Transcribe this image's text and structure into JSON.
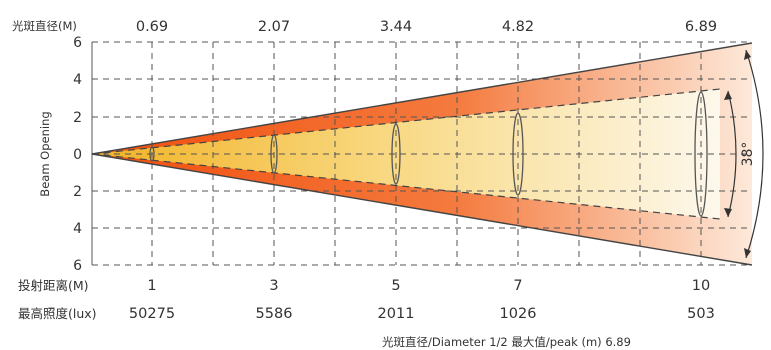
{
  "header": {
    "diameter_label": "光斑直径(M)",
    "diameters": [
      "0.69",
      "2.07",
      "3.44",
      "4.82",
      "6.89"
    ]
  },
  "axis": {
    "y_label": "Beam Opening",
    "y_ticks": [
      "6",
      "4",
      "2",
      "0",
      "2",
      "4",
      "6"
    ]
  },
  "beam": {
    "angle_label": "38°",
    "colors": {
      "outer_start": "#f04e0c",
      "outer_end": "#fde6d4",
      "inner_start": "#f2b224",
      "inner_end": "#fdf7e8",
      "grid": "#555555"
    }
  },
  "footer": {
    "distance_label": "投射距离(M)",
    "distances": [
      "1",
      "3",
      "5",
      "7",
      "10"
    ],
    "lux_label": "最高照度(lux)",
    "lux_values": [
      "50275",
      "5586",
      "2011",
      "1026",
      "503"
    ],
    "note": "光斑直径/Diameter 1/2 最大值/peak (m) 6.89"
  }
}
